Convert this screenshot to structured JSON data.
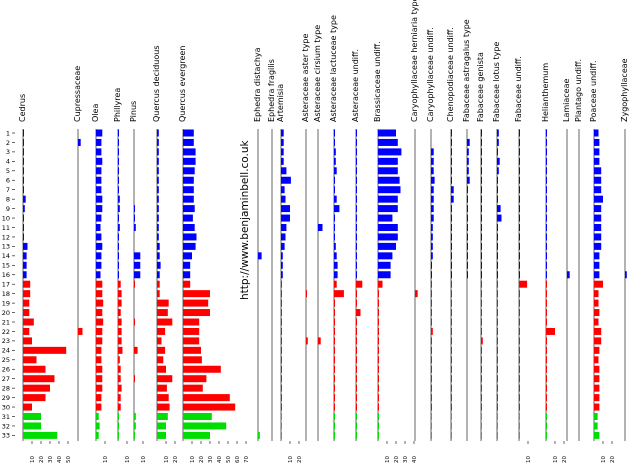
{
  "chart_data": {
    "type": "bar",
    "orientation": "horizontal",
    "y_axis": {
      "label": "",
      "samples": [
        "1",
        "2",
        "3",
        "4",
        "5",
        "6",
        "7",
        "8",
        "9",
        "10",
        "11",
        "12",
        "13",
        "14",
        "15",
        "16",
        "17",
        "18",
        "19",
        "20",
        "21",
        "22",
        "23",
        "24",
        "25",
        "26",
        "27",
        "28",
        "29",
        "30",
        "31",
        "32",
        "33"
      ]
    },
    "zone_colors": [
      "#0000ff",
      "#ff0000",
      "#00dd00"
    ],
    "zones": [
      {
        "from": "1",
        "to": "16",
        "color": "#0000ff"
      },
      {
        "from": "17",
        "to": "30",
        "color": "#ff0000"
      },
      {
        "from": "31",
        "to": "33",
        "color": "#00dd00"
      }
    ],
    "watermark": "http://www.benjaminbell.co.uk",
    "series": [
      {
        "name": "Cedrus",
        "ticks": [
          "10",
          "20",
          "30",
          "40",
          "50"
        ],
        "xlim": [
          0,
          55
        ],
        "values": [
          1,
          1,
          1,
          1,
          1,
          1,
          1,
          3,
          2,
          1,
          1,
          1,
          5,
          4,
          4,
          4,
          8,
          8,
          7,
          7,
          12,
          7,
          10,
          48,
          15,
          25,
          35,
          30,
          25,
          10,
          20,
          20,
          38
        ]
      },
      {
        "name": "Cupressaceae",
        "ticks": [],
        "xlim": [
          0,
          10
        ],
        "values": [
          0,
          3,
          0,
          0,
          0,
          0,
          0,
          0,
          0,
          0,
          0,
          0,
          0,
          0,
          0,
          0,
          0,
          0,
          0,
          0,
          0,
          5,
          0,
          0,
          0,
          0,
          0,
          0,
          0,
          0,
          0,
          0,
          0
        ]
      },
      {
        "name": "Olea",
        "ticks": [
          "10"
        ],
        "xlim": [
          0,
          12
        ],
        "values": [
          7,
          6,
          6,
          7,
          6,
          6,
          6,
          7,
          7,
          6,
          5,
          6,
          7,
          6,
          6,
          5,
          7,
          7,
          8,
          7,
          8,
          7,
          7,
          6,
          6,
          7,
          7,
          7,
          6,
          6,
          3,
          4,
          3
        ]
      },
      {
        "name": "Phillyrea",
        "ticks": [
          "10"
        ],
        "xlim": [
          0,
          12
        ],
        "values": [
          1,
          1,
          1,
          1,
          1,
          1,
          1,
          2,
          2,
          1,
          2,
          1,
          1,
          1,
          1,
          1,
          3,
          4,
          4,
          3,
          4,
          4,
          4,
          5,
          2,
          3,
          3,
          4,
          3,
          3,
          1,
          1,
          1
        ]
      },
      {
        "name": "Pinus",
        "ticks": [
          "10"
        ],
        "xlim": [
          0,
          12
        ],
        "values": [
          0,
          0,
          0,
          0,
          0,
          0,
          0,
          0,
          1,
          1,
          2,
          0,
          0,
          7,
          7,
          7,
          1,
          0,
          0,
          0,
          1,
          0,
          0,
          4,
          0,
          0,
          1,
          0,
          0,
          0,
          2,
          2,
          1
        ]
      },
      {
        "name": "Quercus deciduous",
        "ticks": [
          "10",
          "20"
        ],
        "xlim": [
          0,
          25
        ],
        "values": [
          2,
          2,
          2,
          2,
          2,
          2,
          2,
          2,
          2,
          2,
          2,
          2,
          3,
          3,
          4,
          3,
          3,
          3,
          13,
          12,
          17,
          9,
          5,
          9,
          7,
          10,
          17,
          11,
          13,
          14,
          12,
          10,
          10
        ]
      },
      {
        "name": "Quercus evergreen",
        "ticks": [
          "10",
          "20",
          "30",
          "40",
          "50",
          "60",
          "70"
        ],
        "xlim": [
          0,
          72
        ],
        "values": [
          12,
          12,
          14,
          14,
          13,
          12,
          12,
          12,
          13,
          11,
          13,
          15,
          14,
          10,
          8,
          8,
          8,
          30,
          28,
          30,
          18,
          18,
          18,
          20,
          21,
          42,
          26,
          22,
          52,
          58,
          32,
          48,
          30
        ]
      },
      {
        "name": "Ephedra distachya",
        "ticks": [],
        "xlim": [
          0,
          10
        ],
        "values": [
          0,
          0,
          0,
          0,
          0,
          0,
          0,
          0,
          0,
          0,
          0,
          0,
          0,
          4,
          0,
          0,
          0,
          0,
          0,
          0,
          0,
          0,
          0,
          0,
          0,
          0,
          0,
          0,
          0,
          0,
          0,
          0,
          2
        ]
      },
      {
        "name": "Ephedra fragilis",
        "ticks": [],
        "xlim": [
          0,
          10
        ],
        "values": [
          0,
          0,
          0,
          0,
          0,
          0,
          0,
          0,
          0,
          0,
          0,
          0,
          0,
          0,
          0,
          0,
          0,
          0,
          0,
          0,
          0,
          0,
          0,
          0,
          0,
          0,
          0,
          0,
          0,
          0,
          0,
          0,
          0
        ]
      },
      {
        "name": "Artemisia",
        "ticks": [
          "10",
          "20"
        ],
        "xlim": [
          0,
          25
        ],
        "values": [
          3,
          3,
          3,
          3,
          6,
          11,
          4,
          5,
          10,
          10,
          6,
          5,
          4,
          2,
          2,
          2,
          1,
          1,
          1,
          1,
          1,
          1,
          1,
          1,
          1,
          1,
          1,
          1,
          1,
          1,
          1,
          1,
          1
        ]
      },
      {
        "name": "Asteraceae aster type",
        "ticks": [],
        "xlim": [
          0,
          10
        ],
        "values": [
          0,
          0,
          0,
          0,
          0,
          0,
          0,
          0,
          0,
          0,
          0,
          0,
          0,
          0,
          0,
          0,
          0,
          1,
          0,
          0,
          0,
          0,
          2,
          0,
          0,
          0,
          0,
          0,
          0,
          0,
          0,
          0,
          0
        ]
      },
      {
        "name": "Asteraceae  cirsium type",
        "ticks": [],
        "xlim": [
          0,
          10
        ],
        "values": [
          0,
          0,
          0,
          0,
          0,
          0,
          0,
          0,
          0,
          0,
          5,
          0,
          0,
          0,
          0,
          0,
          0,
          0,
          0,
          0,
          0,
          0,
          3,
          0,
          0,
          0,
          0,
          0,
          0,
          0,
          0,
          0,
          0
        ]
      },
      {
        "name": "Asteraceae  lactuceae type",
        "ticks": [],
        "xlim": [
          0,
          12
        ],
        "values": [
          1,
          1,
          2,
          2,
          3,
          1,
          1,
          3,
          6,
          1,
          1,
          1,
          2,
          3,
          4,
          4,
          3,
          11,
          1,
          1,
          1,
          1,
          1,
          1,
          1,
          1,
          1,
          1,
          1,
          1,
          1,
          1,
          1
        ]
      },
      {
        "name": "Asteraceae undiff.",
        "ticks": [],
        "xlim": [
          0,
          12
        ],
        "values": [
          1,
          1,
          1,
          1,
          1,
          1,
          1,
          1,
          1,
          1,
          1,
          1,
          1,
          1,
          1,
          1,
          7,
          1,
          1,
          5,
          1,
          1,
          1,
          1,
          1,
          1,
          1,
          1,
          1,
          1,
          1,
          1,
          1
        ]
      },
      {
        "name": "Brassicaceae undiff.",
        "ticks": [
          "10",
          "20",
          "30",
          "40"
        ],
        "xlim": [
          0,
          45
        ],
        "values": [
          20,
          22,
          26,
          22,
          22,
          24,
          25,
          22,
          22,
          16,
          22,
          22,
          20,
          16,
          14,
          14,
          5,
          1,
          1,
          1,
          1,
          1,
          1,
          1,
          1,
          1,
          1,
          1,
          1,
          1,
          1,
          1,
          1
        ]
      },
      {
        "name": "Caryophyllaceae herniaria type",
        "ticks": [],
        "xlim": [
          0,
          10
        ],
        "values": [
          0,
          0,
          0,
          0,
          0,
          0,
          0,
          0,
          0,
          0,
          0,
          0,
          0,
          0,
          0,
          0,
          0,
          3,
          0,
          0,
          0,
          0,
          0,
          0,
          0,
          0,
          0,
          0,
          0,
          0,
          0,
          0,
          0
        ]
      },
      {
        "name": "Caryophyllaceae undiff.",
        "ticks": [],
        "xlim": [
          0,
          10
        ],
        "values": [
          0,
          0,
          3,
          3,
          3,
          4,
          3,
          3,
          3,
          3,
          2,
          2,
          2,
          2,
          1,
          1,
          1,
          1,
          1,
          1,
          1,
          2,
          1,
          1,
          1,
          1,
          1,
          1,
          1,
          1,
          1,
          1,
          1
        ]
      },
      {
        "name": "Chenopodiaceae undiff.",
        "ticks": [],
        "xlim": [
          0,
          12
        ],
        "values": [
          1,
          1,
          1,
          1,
          1,
          1,
          3,
          3,
          1,
          1,
          1,
          1,
          1,
          1,
          1,
          1,
          1,
          1,
          1,
          1,
          1,
          1,
          1,
          1,
          1,
          1,
          1,
          1,
          1,
          1,
          1,
          1,
          1
        ]
      },
      {
        "name": "Fabaceae astragalus type",
        "ticks": [],
        "xlim": [
          0,
          10
        ],
        "values": [
          0,
          3,
          2,
          2,
          2,
          3,
          1,
          1,
          1,
          1,
          1,
          1,
          1,
          1,
          1,
          1,
          0,
          0,
          0,
          0,
          0,
          0,
          0,
          0,
          0,
          0,
          0,
          0,
          0,
          0,
          0,
          0,
          0
        ]
      },
      {
        "name": "Fabaceae genista",
        "ticks": [],
        "xlim": [
          0,
          10
        ],
        "values": [
          1,
          1,
          1,
          1,
          1,
          1,
          1,
          1,
          1,
          1,
          1,
          1,
          1,
          1,
          1,
          1,
          1,
          1,
          1,
          1,
          1,
          1,
          2,
          1,
          1,
          1,
          1,
          1,
          1,
          1,
          1,
          1,
          1
        ]
      },
      {
        "name": "Fabaceae lotus type",
        "ticks": [],
        "xlim": [
          0,
          12
        ],
        "values": [
          2,
          2,
          1,
          3,
          2,
          1,
          1,
          1,
          4,
          5,
          1,
          1,
          1,
          1,
          1,
          1,
          1,
          1,
          1,
          1,
          1,
          1,
          1,
          1,
          1,
          1,
          1,
          1,
          1,
          1,
          1,
          1,
          1
        ]
      },
      {
        "name": "Fabaceae undiff.",
        "ticks": [
          "10"
        ],
        "xlim": [
          0,
          12
        ],
        "values": [
          1,
          1,
          1,
          1,
          1,
          1,
          1,
          1,
          1,
          1,
          1,
          1,
          1,
          1,
          1,
          1,
          9,
          1,
          1,
          1,
          1,
          1,
          1,
          1,
          1,
          1,
          1,
          1,
          1,
          1,
          1,
          1,
          1
        ]
      },
      {
        "name": "Helianthemum",
        "ticks": [
          "10",
          "20"
        ],
        "xlim": [
          0,
          25
        ],
        "values": [
          1,
          1,
          1,
          1,
          1,
          1,
          1,
          1,
          1,
          1,
          1,
          1,
          1,
          1,
          1,
          1,
          1,
          1,
          1,
          1,
          1,
          10,
          1,
          1,
          1,
          1,
          1,
          1,
          1,
          1,
          1,
          1,
          1
        ]
      },
      {
        "name": "Lamiaceae",
        "ticks": [],
        "xlim": [
          0,
          10
        ],
        "values": [
          0,
          0,
          0,
          0,
          0,
          0,
          0,
          0,
          0,
          0,
          0,
          0,
          0,
          0,
          0,
          3,
          0,
          0,
          0,
          0,
          0,
          0,
          0,
          0,
          0,
          0,
          0,
          0,
          0,
          0,
          0,
          0,
          0
        ]
      },
      {
        "name": "Plantago undiff.",
        "ticks": [],
        "xlim": [
          0,
          10
        ],
        "values": [
          0,
          0,
          0,
          0,
          0,
          0,
          0,
          0,
          0,
          0,
          0,
          0,
          0,
          0,
          0,
          0,
          0,
          0,
          0,
          0,
          0,
          0,
          0,
          0,
          0,
          0,
          0,
          0,
          0,
          0,
          0,
          0,
          0
        ]
      },
      {
        "name": "Poaceae undiff.",
        "ticks": [
          "10",
          "20"
        ],
        "xlim": [
          0,
          25
        ],
        "values": [
          5,
          6,
          6,
          6,
          8,
          8,
          8,
          10,
          8,
          8,
          8,
          8,
          8,
          6,
          6,
          6,
          10,
          5,
          5,
          6,
          5,
          8,
          8,
          6,
          5,
          6,
          6,
          6,
          6,
          6,
          4,
          4,
          6
        ]
      },
      {
        "name": "Zygophyllaceae",
        "ticks": [],
        "xlim": [
          0,
          10
        ],
        "values": [
          0,
          0,
          0,
          0,
          0,
          0,
          0,
          0,
          0,
          0,
          0,
          0,
          0,
          0,
          0,
          2,
          0,
          0,
          0,
          0,
          0,
          0,
          0,
          0,
          0,
          0,
          0,
          0,
          0,
          0,
          0,
          0,
          0
        ]
      }
    ]
  }
}
